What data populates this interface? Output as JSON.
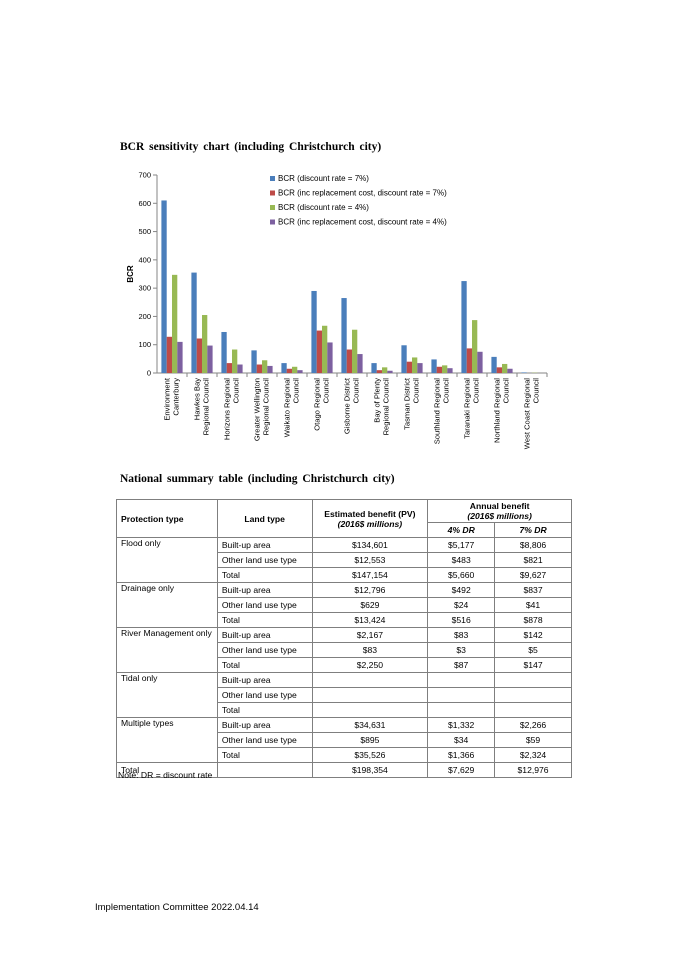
{
  "chart_title": "BCR sensitivity chart (including Christchurch city)",
  "chart_data": {
    "type": "bar",
    "title": "BCR sensitivity chart (including Christchurch city)",
    "ylabel": "BCR",
    "xlabel": "",
    "ylim": [
      0,
      700
    ],
    "yticks": [
      "0",
      "100",
      "200",
      "300",
      "400",
      "500",
      "600",
      "700"
    ],
    "legend_position": "top-center",
    "categories": [
      "Environment Canterbury",
      "Hawkes Bay Regional Council",
      "Horizons Regional Council",
      "Greater Wellington Regional Council",
      "Waikato Regional Council",
      "Otago Regional Council",
      "Gisborne District Council",
      "Bay of Plenty Regional Council",
      "Tasman District Council",
      "Southland Regional Council",
      "Taranaki Regional Council",
      "Northland Regional Council",
      "West Coast Regional Council"
    ],
    "category_lines": [
      [
        "Environment",
        "Canterbury"
      ],
      [
        "Hawkes Bay",
        "Regional Council"
      ],
      [
        "Horizons Regional",
        "Council"
      ],
      [
        "Greater Wellington",
        "Regional Council"
      ],
      [
        "Waikato Regional",
        "Council"
      ],
      [
        "Otago Regional",
        "Council"
      ],
      [
        "Gisborne District",
        "Council"
      ],
      [
        "Bay of Plenty",
        "Regional Council"
      ],
      [
        "Tasman District",
        "Council"
      ],
      [
        "Southland Regional",
        "Council"
      ],
      [
        "Taranaki Regional",
        "Council"
      ],
      [
        "Northland Regional",
        "Council"
      ],
      [
        "West Coast Regional",
        "Council"
      ]
    ],
    "series": [
      {
        "name": "BCR (discount rate = 7%)",
        "color": "#4a7ebb",
        "values": [
          610,
          355,
          145,
          80,
          35,
          290,
          265,
          35,
          98,
          48,
          325,
          57,
          2
        ]
      },
      {
        "name": "BCR (inc replacement cost, discount rate = 7%)",
        "color": "#be4b48",
        "values": [
          128,
          122,
          35,
          30,
          15,
          150,
          83,
          10,
          40,
          22,
          87,
          20,
          0
        ]
      },
      {
        "name": "BCR (discount rate = 4%)",
        "color": "#98b954",
        "values": [
          347,
          205,
          83,
          45,
          22,
          167,
          153,
          20,
          55,
          27,
          187,
          32,
          1
        ]
      },
      {
        "name": "BCR (inc replacement cost, discount rate = 4%)",
        "color": "#7d60a0",
        "values": [
          110,
          97,
          30,
          25,
          10,
          108,
          67,
          8,
          35,
          17,
          75,
          15,
          0
        ]
      }
    ]
  },
  "table_title": "National summary table (including Christchurch city)",
  "table": {
    "headers": {
      "protection_type": "Protection type",
      "land_type": "Land type",
      "estimated_benefit": "Estimated benefit (PV)",
      "estimated_benefit_unit": "(2016$ millions)",
      "annual_benefit": "Annual benefit",
      "annual_benefit_unit": "(2016$ millions)",
      "dr4": "4% DR",
      "dr7": "7% DR"
    },
    "groups": [
      {
        "protection_type": "Flood only",
        "rows": [
          {
            "land_type": "Built-up area",
            "pv": "$134,601",
            "dr4": "$5,177",
            "dr7": "$8,806"
          },
          {
            "land_type": "Other land use type",
            "pv": "$12,553",
            "dr4": "$483",
            "dr7": "$821"
          },
          {
            "land_type": "Total",
            "pv": "$147,154",
            "dr4": "$5,660",
            "dr7": "$9,627"
          }
        ]
      },
      {
        "protection_type": "Drainage only",
        "rows": [
          {
            "land_type": "Built-up area",
            "pv": "$12,796",
            "dr4": "$492",
            "dr7": "$837"
          },
          {
            "land_type": "Other land use type",
            "pv": "$629",
            "dr4": "$24",
            "dr7": "$41"
          },
          {
            "land_type": "Total",
            "pv": "$13,424",
            "dr4": "$516",
            "dr7": "$878"
          }
        ]
      },
      {
        "protection_type": "River Management only",
        "rows": [
          {
            "land_type": "Built-up area",
            "pv": "$2,167",
            "dr4": "$83",
            "dr7": "$142"
          },
          {
            "land_type": "Other land use type",
            "pv": "$83",
            "dr4": "$3",
            "dr7": "$5"
          },
          {
            "land_type": "Total",
            "pv": "$2,250",
            "dr4": "$87",
            "dr7": "$147"
          }
        ]
      },
      {
        "protection_type": "Tidal only",
        "rows": [
          {
            "land_type": "Built-up area",
            "pv": "",
            "dr4": "",
            "dr7": ""
          },
          {
            "land_type": "Other land use type",
            "pv": "",
            "dr4": "",
            "dr7": ""
          },
          {
            "land_type": "Total",
            "pv": "",
            "dr4": "",
            "dr7": ""
          }
        ]
      },
      {
        "protection_type": "Multiple types",
        "rows": [
          {
            "land_type": "Built-up area",
            "pv": "$34,631",
            "dr4": "$1,332",
            "dr7": "$2,266"
          },
          {
            "land_type": "Other land use type",
            "pv": "$895",
            "dr4": "$34",
            "dr7": "$59"
          },
          {
            "land_type": "Total",
            "pv": "$35,526",
            "dr4": "$1,366",
            "dr7": "$2,324"
          }
        ]
      }
    ],
    "grand_total": {
      "label": "Total",
      "land_type": "",
      "pv": "$198,354",
      "dr4": "$7,629",
      "dr7": "$12,976"
    }
  },
  "note": "Note: DR = discount rate",
  "footer": "Implementation Committee 2022.04.14"
}
